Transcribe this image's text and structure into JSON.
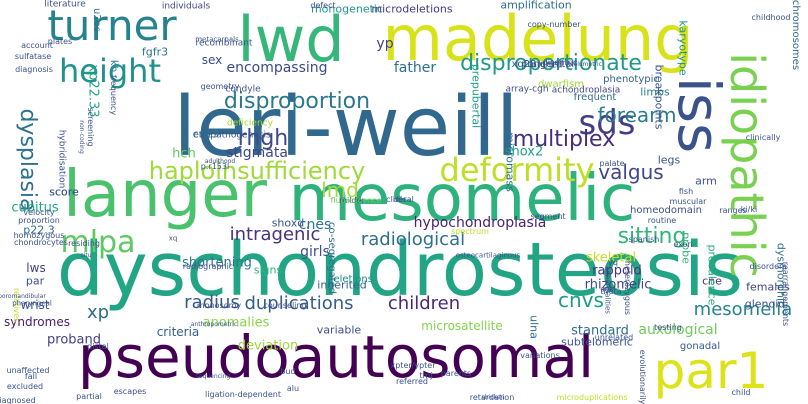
{
  "palette": {
    "background": "#ffffff",
    "colormap": "viridis"
  },
  "words": [
    {
      "t": "leri-weill",
      "c": "#31688e"
    },
    {
      "t": "dyschondrosteosis",
      "c": "#21a585"
    },
    {
      "t": "pseudoautosomal",
      "c": "#440154"
    },
    {
      "t": "mesomelic",
      "c": "#2db27d"
    },
    {
      "t": "madelung",
      "c": "#d8e219"
    },
    {
      "t": "langer",
      "c": "#4ac16d"
    },
    {
      "t": "lwd",
      "c": "#35b779"
    },
    {
      "t": "turner",
      "c": "#26828e"
    },
    {
      "t": "height",
      "c": "#21918c"
    },
    {
      "t": "idiopathic",
      "c": "#7ad151"
    },
    {
      "t": "iss",
      "c": "#3b528b"
    },
    {
      "t": "par1",
      "c": "#dde318"
    },
    {
      "t": "sds",
      "c": "#433e85"
    },
    {
      "t": "deformity",
      "c": "#bddf26"
    },
    {
      "t": "haploinsufficiency",
      "c": "#a0da39"
    },
    {
      "t": "disproportionate",
      "c": "#1f9a8a"
    },
    {
      "t": "disproportion",
      "c": "#2a788e"
    },
    {
      "t": "mlpa",
      "c": "#5ec962"
    },
    {
      "t": "dysplasia",
      "c": "#2c728e"
    },
    {
      "t": "multiplex",
      "c": "#472d7b"
    },
    {
      "t": "forearm",
      "c": "#287c8e"
    },
    {
      "t": "radiological",
      "c": "#2e6e8e"
    },
    {
      "t": "intragenic",
      "c": "#46327e"
    },
    {
      "t": "rhgh",
      "c": "#3e4989"
    },
    {
      "t": "valgus",
      "c": "#404688"
    },
    {
      "t": "sitting",
      "c": "#31b57b"
    },
    {
      "t": "radius",
      "c": "#38598c"
    },
    {
      "t": "duplications",
      "c": "#365c8d"
    },
    {
      "t": "children",
      "c": "#482878"
    },
    {
      "t": "cnvs",
      "c": "#1e9b8a"
    },
    {
      "t": "mesomelia",
      "c": "#25848e"
    },
    {
      "t": "hypochondroplasia",
      "c": "#482475"
    },
    {
      "t": "cnes",
      "c": "#2a768e"
    },
    {
      "t": "girls",
      "c": "#3b528b"
    },
    {
      "t": "lmd",
      "c": "#a5db36"
    },
    {
      "t": "xp",
      "c": "#306a8e"
    },
    {
      "t": "encompassing",
      "c": "#3e4a89"
    },
    {
      "t": "father",
      "c": "#2d708e"
    },
    {
      "t": "yp",
      "c": "#424086"
    },
    {
      "t": "monogenetic",
      "c": "#1f958b"
    },
    {
      "t": "microdeletions",
      "c": "#443983"
    },
    {
      "t": "amplification",
      "c": "#2d708e"
    },
    {
      "t": "stigmata",
      "c": "#3f4788"
    },
    {
      "t": "hch",
      "c": "#5ec962"
    },
    {
      "t": "cne9",
      "c": "#27808e"
    },
    {
      "t": "shox2",
      "c": "#1fa287"
    },
    {
      "t": "skeletal",
      "c": "#c2df23"
    },
    {
      "t": "rappold",
      "c": "#453581"
    },
    {
      "t": "rhizomelic",
      "c": "#3f4788"
    },
    {
      "t": "auxological",
      "c": "#6ccd5a"
    },
    {
      "t": "anomalies",
      "c": "#8bd646"
    },
    {
      "t": "syndromes",
      "c": "#481d6f"
    },
    {
      "t": "deviation",
      "c": "#9bd93c"
    },
    {
      "t": "proband",
      "c": "#424086"
    },
    {
      "t": "shortening",
      "c": "#2c738e"
    },
    {
      "t": "signs",
      "c": "#2fb47c"
    },
    {
      "t": "lws",
      "c": "#414287"
    },
    {
      "t": "par",
      "c": "#3d4d8a"
    },
    {
      "t": "cubitus",
      "c": "#21a685"
    },
    {
      "t": "p22.3",
      "c": "#2f6b8e"
    },
    {
      "t": "wrist",
      "c": "#3a538b"
    },
    {
      "t": "criteria",
      "c": "#34618d"
    },
    {
      "t": "microsatellite",
      "c": "#84d44b"
    },
    {
      "t": "standard",
      "c": "#2e6d8e"
    },
    {
      "t": "variable",
      "c": "#3c508b"
    },
    {
      "t": "inherited",
      "c": "#345e8d"
    },
    {
      "t": "deletions",
      "c": "#228d8d"
    },
    {
      "t": "cne",
      "c": "#472c7a"
    },
    {
      "t": "females",
      "c": "#414487"
    },
    {
      "t": "arm",
      "c": "#3b528b"
    },
    {
      "t": "limbs",
      "c": "#26818e"
    },
    {
      "t": "legs",
      "c": "#3b528b"
    },
    {
      "t": "breakpoints",
      "c": "#39568c"
    },
    {
      "t": "karyotype",
      "c": "#1f948c"
    },
    {
      "t": "chromosomes",
      "c": "#30698e"
    },
    {
      "t": "dysmorphic",
      "c": "#2b748e"
    },
    {
      "t": "prevalence",
      "c": "#29af7f"
    },
    {
      "t": "probe",
      "c": "#34b679"
    },
    {
      "t": "glenoid",
      "c": "#3a548c"
    },
    {
      "t": "ulna",
      "c": "#2e6f8e"
    },
    {
      "t": "subtelomeric",
      "c": "#3b528b"
    },
    {
      "t": "sex",
      "c": "#3e4989"
    },
    {
      "t": "fgfr3",
      "c": "#2c718e"
    },
    {
      "t": "kb",
      "c": "#277f8e"
    },
    {
      "t": "u2os",
      "c": "#2c728e"
    },
    {
      "t": "xp22.33",
      "c": "#21a685"
    },
    {
      "t": "micromass",
      "c": "#2d708e"
    },
    {
      "t": "prepubertal",
      "c": "#1fa088"
    },
    {
      "t": "score",
      "c": "#38588c"
    },
    {
      "t": "score",
      "c": "#38588c"
    },
    {
      "t": "shoxd",
      "c": "#3a548c"
    },
    {
      "t": "gonadal",
      "c": "#38598c"
    },
    {
      "t": "co-segregated",
      "c": "#2e6e8e"
    },
    {
      "t": "xq28",
      "c": "#3b528b"
    },
    {
      "t": "frequent",
      "c": "#2e6e8e"
    },
    {
      "t": "phenotypic",
      "c": "#32648e"
    },
    {
      "t": "homeodomain",
      "c": "#3c4f8a"
    },
    {
      "t": "dwarfism",
      "c": "#9fda3a"
    },
    {
      "t": "array-cgh",
      "c": "#3e4989"
    },
    {
      "t": "achondroplasia",
      "c": "#404688"
    },
    {
      "t": "congenital",
      "c": "#414487"
    },
    {
      "t": "arched",
      "c": "#3b528b"
    },
    {
      "t": "literature",
      "c": "#3b528b"
    },
    {
      "t": "individuals",
      "c": "#404688"
    },
    {
      "t": "recombinant",
      "c": "#3b528b"
    },
    {
      "t": "geometry",
      "c": "#3b528b"
    },
    {
      "t": "account",
      "c": "#3b528b"
    },
    {
      "t": "plates",
      "c": "#3b528b"
    },
    {
      "t": "sulfatase",
      "c": "#3b528b"
    },
    {
      "t": "diagnosis",
      "c": "#3b528b"
    },
    {
      "t": "condyle",
      "c": "#3b528b"
    },
    {
      "t": "etiopathogenesis",
      "c": "#3b528b"
    },
    {
      "t": "deficiency",
      "c": "#9bd93c"
    },
    {
      "t": "milder",
      "c": "#3b528b"
    },
    {
      "t": "fluorescence",
      "c": "#6ccd5a"
    },
    {
      "t": "fish",
      "c": "#3b528b"
    },
    {
      "t": "routine",
      "c": "#3b528b"
    },
    {
      "t": "spanish",
      "c": "#3b528b"
    },
    {
      "t": "ranges",
      "c": "#3b528b"
    },
    {
      "t": "disorders",
      "c": "#3b528b"
    },
    {
      "t": "clinically",
      "c": "#3b528b"
    },
    {
      "t": "childhood",
      "c": "#3b528b"
    },
    {
      "t": "dicentric",
      "c": "#3b528b"
    },
    {
      "t": "segment",
      "c": "#3b528b"
    },
    {
      "t": "spectrum",
      "c": "#bddf26"
    },
    {
      "t": "relatives",
      "c": "#bddf26"
    },
    {
      "t": "unaffected",
      "c": "#3b528b"
    },
    {
      "t": "excluded",
      "c": "#3b528b"
    },
    {
      "t": "diagnosed",
      "c": "#3b528b"
    },
    {
      "t": "escapes",
      "c": "#3b528b"
    },
    {
      "t": "ligation-dependent",
      "c": "#3b528b"
    },
    {
      "t": "microduplications",
      "c": "#bddf26"
    },
    {
      "t": "child",
      "c": "#3b528b"
    },
    {
      "t": "fall",
      "c": "#3b528b"
    },
    {
      "t": "velocity",
      "c": "#3b528b"
    },
    {
      "t": "proportion",
      "c": "#3b528b"
    },
    {
      "t": "homozygous",
      "c": "#3b528b"
    },
    {
      "t": "chondrocytes",
      "c": "#3b528b"
    },
    {
      "t": "residing",
      "c": "#3b528b"
    },
    {
      "t": "xq",
      "c": "#3b528b"
    },
    {
      "t": "radiographic",
      "c": "#3b528b"
    },
    {
      "t": "monosomy",
      "c": "#3b528b"
    },
    {
      "t": "counseling",
      "c": "#3b528b"
    },
    {
      "t": "bud",
      "c": "#3b528b"
    },
    {
      "t": "alu",
      "c": "#3b528b"
    },
    {
      "t": "tmj",
      "c": "#3b528b"
    },
    {
      "t": "parents",
      "c": "#3b528b"
    },
    {
      "t": "variations",
      "c": "#3b528b"
    },
    {
      "t": "xpter/ypter",
      "c": "#3b528b"
    },
    {
      "t": "referred",
      "c": "#3b528b"
    },
    {
      "t": "retardation",
      "c": "#3b528b"
    },
    {
      "t": "evolutionarily",
      "c": "#3b528b"
    },
    {
      "t": "heterozygous",
      "c": "#3b528b"
    },
    {
      "t": "age",
      "c": "#3b528b"
    },
    {
      "t": "yq",
      "c": "#3b528b"
    },
    {
      "t": "rearrangements",
      "c": "#3b528b"
    },
    {
      "t": "ki/ki",
      "c": "#3b528b"
    },
    {
      "t": "copy-number",
      "c": "#3b528b"
    },
    {
      "t": "hybridisation",
      "c": "#3b528b"
    },
    {
      "t": "frequency",
      "c": "#3b528b"
    },
    {
      "t": "screening",
      "c": "#3b528b"
    },
    {
      "t": "distal",
      "c": "#3b528b"
    },
    {
      "t": "partial",
      "c": "#3b528b"
    },
    {
      "t": "p.r153l",
      "c": "#3b528b"
    },
    {
      "t": "theta",
      "c": "#3b528b"
    },
    {
      "t": "testing",
      "c": "#3b528b"
    },
    {
      "t": "palate",
      "c": "#3b528b"
    },
    {
      "t": "exon",
      "c": "#3b528b"
    },
    {
      "t": "muscular",
      "c": "#3b528b"
    },
    {
      "t": "temporomandibular",
      "c": "#3b528b"
    },
    {
      "t": "pharyngeal",
      "c": "#3b528b"
    },
    {
      "t": "situ",
      "c": "#3b528b"
    },
    {
      "t": "non-coding",
      "c": "#3b528b"
    },
    {
      "t": "metacarpals",
      "c": "#3b528b"
    },
    {
      "t": "anthropometric",
      "c": "#3b528b"
    },
    {
      "t": "sequencing",
      "c": "#3b528b"
    },
    {
      "t": "adulthood",
      "c": "#3b528b"
    },
    {
      "t": "abnormalities",
      "c": "#3b528b"
    },
    {
      "t": "osteocartilaginous",
      "c": "#3b528b"
    },
    {
      "t": "chicken",
      "c": "#3b528b"
    },
    {
      "t": "volumetric",
      "c": "#3b528b"
    },
    {
      "t": "underestimated",
      "c": "#3b528b"
    },
    {
      "t": "defect",
      "c": "#3b528b"
    },
    {
      "t": "unrelated",
      "c": "#3b528b"
    },
    {
      "t": "der",
      "c": "#3b528b"
    },
    {
      "t": "clinical",
      "c": "#3b528b"
    }
  ]
}
